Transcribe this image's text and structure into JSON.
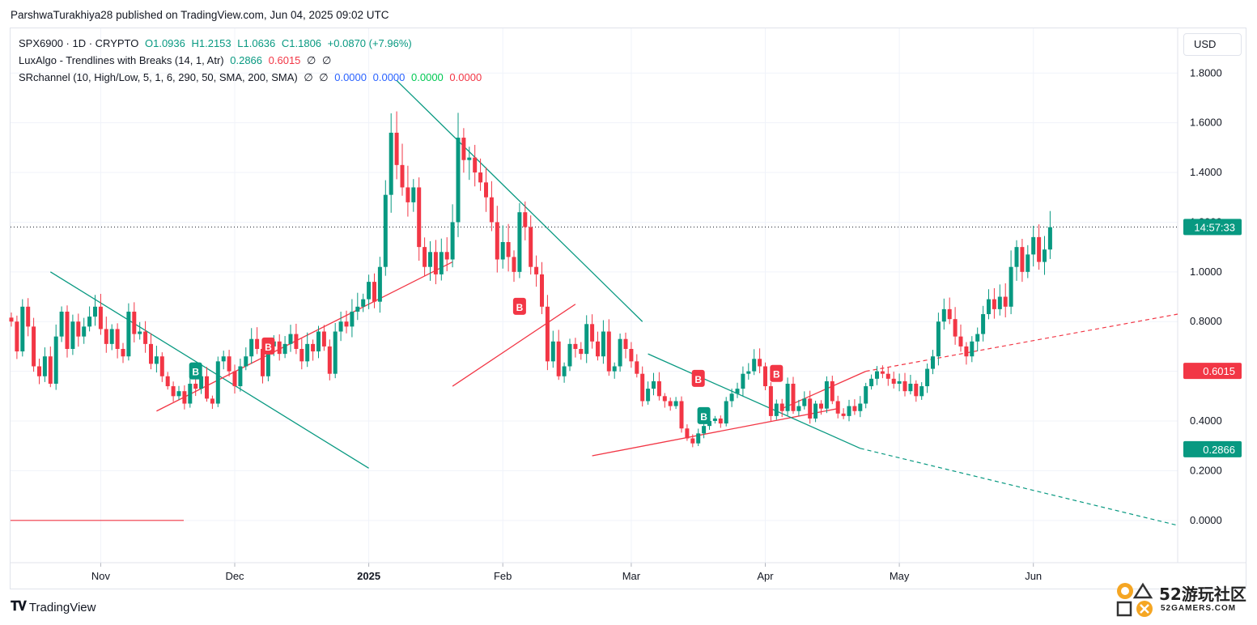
{
  "publisher_line": "ParshwaTurakhiya28 published on TradingView.com, Jun 04, 2025 09:02 UTC",
  "legend": {
    "symbol": "SPX6900 · 1D · CRYPTO",
    "open": "O1.0936",
    "high": "H1.2153",
    "low": "L1.0636",
    "close": "C1.1806",
    "change": "+0.0870 (+7.96%)",
    "indicator1_name": "LuxAlgo - Trendlines with Breaks (14, 1, Atr)",
    "indicator1_v1": "0.2866",
    "indicator1_v2": "0.6015",
    "indicator1_v3": "∅",
    "indicator1_v4": "∅",
    "indicator2_name": "SRchannel (10, High/Low, 5, 1, 6, 290, 50, SMA, 200, SMA)",
    "indicator2_v1": "∅",
    "indicator2_v2": "∅",
    "indicator2_v3": "0.0000",
    "indicator2_v4": "0.0000",
    "indicator2_v5": "0.0000",
    "indicator2_v6": "0.0000"
  },
  "currency_button": "USD",
  "footer_logo": "TradingView",
  "watermark_text": "52游玩社区",
  "watermark_sub": "52GAMERS.COM",
  "colors": {
    "up": "#089981",
    "down": "#f23645",
    "trend_down": "#089981",
    "trend_up": "#f23645"
  },
  "chart_data": {
    "type": "candlestick",
    "symbol": "SPX6900",
    "interval": "1D",
    "y_ticks": [
      "1.8000",
      "1.6000",
      "1.4000",
      "1.2000",
      "1.0000",
      "0.8000",
      "0.6000",
      "0.4000",
      "0.2000",
      "0.0000"
    ],
    "x_ticks": [
      "Nov",
      "Dec",
      "2025",
      "Feb",
      "Mar",
      "Apr",
      "May",
      "Jun"
    ],
    "ylim": [
      -0.17,
      1.98
    ],
    "price_labels": [
      {
        "text": "14:57:33",
        "value": 1.1806,
        "color": "#089981"
      },
      {
        "text": "0.6015",
        "value": 0.6015,
        "color": "#f23645"
      },
      {
        "text": "0.2866",
        "value": 0.2866,
        "color": "#089981"
      }
    ],
    "close_series": [
      0.8,
      0.68,
      0.86,
      0.78,
      0.62,
      0.58,
      0.66,
      0.55,
      0.74,
      0.84,
      0.69,
      0.8,
      0.74,
      0.78,
      0.82,
      0.86,
      0.77,
      0.71,
      0.77,
      0.69,
      0.66,
      0.84,
      0.75,
      0.76,
      0.71,
      0.63,
      0.66,
      0.58,
      0.54,
      0.5,
      0.52,
      0.47,
      0.55,
      0.53,
      0.58,
      0.49,
      0.47,
      0.64,
      0.66,
      0.6,
      0.54,
      0.62,
      0.66,
      0.73,
      0.69,
      0.58,
      0.7,
      0.72,
      0.67,
      0.71,
      0.75,
      0.69,
      0.64,
      0.71,
      0.68,
      0.76,
      0.7,
      0.59,
      0.76,
      0.8,
      0.78,
      0.84,
      0.86,
      0.89,
      0.96,
      0.88,
      1.02,
      1.31,
      1.56,
      1.43,
      1.34,
      1.28,
      1.34,
      1.1,
      1.02,
      1.08,
      0.99,
      1.08,
      1.05,
      1.2,
      1.54,
      1.45,
      1.46,
      1.4,
      1.36,
      1.3,
      1.2,
      1.05,
      1.12,
      1.06,
      1.0,
      1.24,
      1.18,
      1.02,
      0.99,
      0.86,
      0.64,
      0.72,
      0.58,
      0.62,
      0.71,
      0.69,
      0.67,
      0.79,
      0.72,
      0.66,
      0.76,
      0.6,
      0.62,
      0.73,
      0.69,
      0.64,
      0.59,
      0.48,
      0.53,
      0.56,
      0.5,
      0.48,
      0.46,
      0.48,
      0.37,
      0.33,
      0.31,
      0.35,
      0.38,
      0.4,
      0.41,
      0.39,
      0.48,
      0.51,
      0.53,
      0.59,
      0.6,
      0.65,
      0.62,
      0.54,
      0.42,
      0.47,
      0.44,
      0.55,
      0.44,
      0.46,
      0.49,
      0.41,
      0.47,
      0.45,
      0.56,
      0.48,
      0.43,
      0.42,
      0.46,
      0.44,
      0.47,
      0.54,
      0.57,
      0.6,
      0.59,
      0.57,
      0.55,
      0.56,
      0.52,
      0.55,
      0.5,
      0.54,
      0.61,
      0.66,
      0.8,
      0.85,
      0.81,
      0.74,
      0.7,
      0.66,
      0.72,
      0.75,
      0.83,
      0.89,
      0.85,
      0.9,
      0.86,
      1.02,
      1.1,
      1.0,
      1.07,
      1.14,
      1.04,
      1.09,
      1.18
    ],
    "trendlines": [
      {
        "color": "#089981",
        "from": {
          "i": 7,
          "v": 1.0
        },
        "to": {
          "i": 64,
          "v": 0.21
        }
      },
      {
        "color": "#f23645",
        "from": {
          "i": 26,
          "v": 0.44
        },
        "to": {
          "i": 79,
          "v": 1.04
        }
      },
      {
        "color": "#089981",
        "from": {
          "i": 69,
          "v": 1.77
        },
        "to": {
          "i": 113,
          "v": 0.8
        }
      },
      {
        "color": "#f23645",
        "from": {
          "i": 79,
          "v": 0.54
        },
        "to": {
          "i": 101,
          "v": 0.87
        }
      },
      {
        "color": "#f23645",
        "from": {
          "i": 104,
          "v": 0.26
        },
        "to": {
          "i": 148,
          "v": 0.45
        }
      },
      {
        "color": "#089981",
        "from": {
          "i": 114,
          "v": 0.67
        },
        "to": {
          "i": 152,
          "v": 0.29
        }
      },
      {
        "color": "#f23645",
        "from": {
          "i": 138,
          "v": 0.45
        },
        "to": {
          "i": 153,
          "v": 0.6
        }
      }
    ],
    "breaks": [
      {
        "label": "B",
        "color": "#089981",
        "i": 33,
        "v": 0.6
      },
      {
        "label": "B",
        "color": "#f23645",
        "i": 46,
        "v": 0.7
      },
      {
        "label": "B",
        "color": "#f23645",
        "i": 91,
        "v": 0.86
      },
      {
        "label": "B",
        "color": "#f23645",
        "i": 123,
        "v": 0.57
      },
      {
        "label": "B",
        "color": "#089981",
        "i": 124,
        "v": 0.42
      },
      {
        "label": "B",
        "color": "#f23645",
        "i": 137,
        "v": 0.59
      }
    ]
  }
}
